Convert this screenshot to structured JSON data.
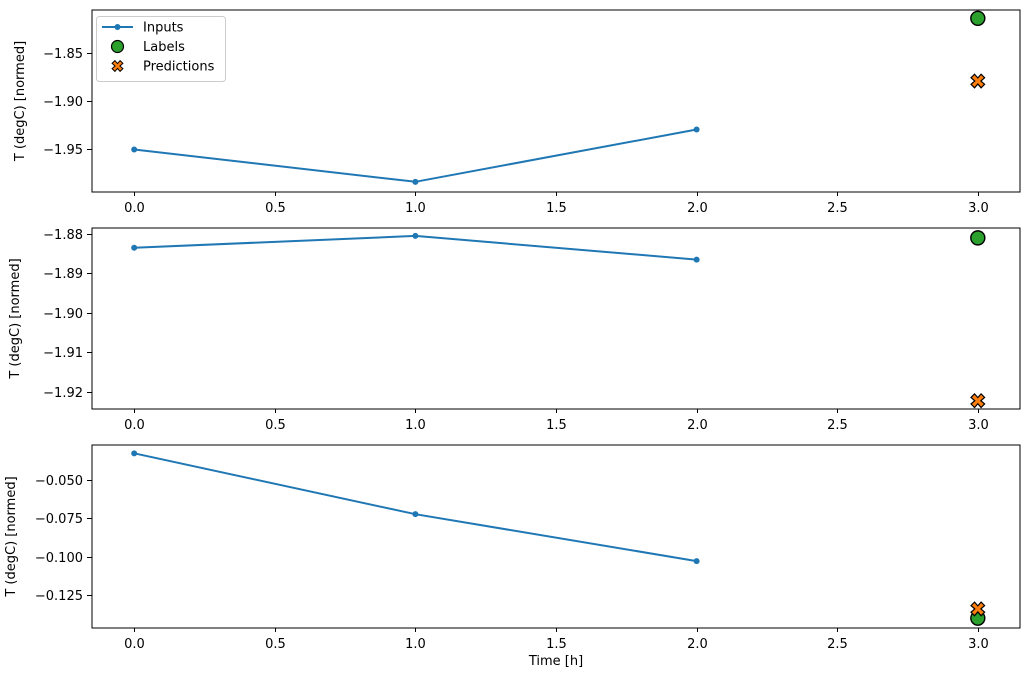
{
  "figure": {
    "xlabel": "Time [h]",
    "background": "#ffffff",
    "colors": {
      "inputs": "#1f77b4",
      "labels": "#2ca02c",
      "predictions": "#ff7f0e",
      "marker_edge": "#000000",
      "axes": "#000000",
      "text": "#000000",
      "legend_border": "#cccccc",
      "legend_bg": "#ffffff"
    },
    "legend": {
      "position": "upper-left",
      "entries": [
        {
          "label": "Inputs",
          "marker": "dot-line",
          "color": "#1f77b4"
        },
        {
          "label": "Labels",
          "marker": "circle",
          "color": "#2ca02c"
        },
        {
          "label": "Predictions",
          "marker": "x",
          "color": "#ff7f0e"
        }
      ]
    }
  },
  "chart_data": [
    {
      "type": "line",
      "ylabel": "T (degC) [normed]",
      "grid": false,
      "xlim": [
        -0.15,
        3.15
      ],
      "ylim": [
        -1.9957,
        -1.8043
      ],
      "xticks": {
        "values": [
          0,
          0.5,
          1,
          1.5,
          2,
          2.5,
          3
        ],
        "labels": [
          "0.0",
          "0.5",
          "1.0",
          "1.5",
          "2.0",
          "2.5",
          "3.0"
        ]
      },
      "yticks": {
        "values": [
          -1.85,
          -1.9,
          -1.95
        ],
        "labels": [
          "−1.85",
          "−1.90",
          "−1.95"
        ]
      },
      "series": [
        {
          "name": "Inputs",
          "marker": "dot-line",
          "x": [
            0,
            1,
            2
          ],
          "y": [
            -1.951,
            -1.985,
            -1.93
          ]
        },
        {
          "name": "Labels",
          "marker": "circle",
          "x": [
            3
          ],
          "y": [
            -1.813
          ]
        },
        {
          "name": "Predictions",
          "marker": "x",
          "x": [
            3
          ],
          "y": [
            -1.879
          ]
        }
      ]
    },
    {
      "type": "line",
      "ylabel": "T (degC) [normed]",
      "grid": false,
      "xlim": [
        -0.15,
        3.15
      ],
      "ylim": [
        -1.9243,
        -1.8785
      ],
      "xticks": {
        "values": [
          0,
          0.5,
          1,
          1.5,
          2,
          2.5,
          3
        ],
        "labels": [
          "0.0",
          "0.5",
          "1.0",
          "1.5",
          "2.0",
          "2.5",
          "3.0"
        ]
      },
      "yticks": {
        "values": [
          -1.88,
          -1.89,
          -1.9,
          -1.91,
          -1.92
        ],
        "labels": [
          "−1.88",
          "−1.89",
          "−1.90",
          "−1.91",
          "−1.92"
        ]
      },
      "series": [
        {
          "name": "Inputs",
          "marker": "dot-line",
          "x": [
            0,
            1,
            2
          ],
          "y": [
            -1.8835,
            -1.8805,
            -1.8865
          ]
        },
        {
          "name": "Labels",
          "marker": "circle",
          "x": [
            3
          ],
          "y": [
            -1.881
          ]
        },
        {
          "name": "Predictions",
          "marker": "x",
          "x": [
            3
          ],
          "y": [
            -1.9222
          ]
        }
      ]
    },
    {
      "type": "line",
      "ylabel": "T (degC) [normed]",
      "grid": false,
      "xlim": [
        -0.15,
        3.15
      ],
      "ylim": [
        -0.1464,
        -0.0276
      ],
      "xticks": {
        "values": [
          0,
          0.5,
          1,
          1.5,
          2,
          2.5,
          3
        ],
        "labels": [
          "0.0",
          "0.5",
          "1.0",
          "1.5",
          "2.0",
          "2.5",
          "3.0"
        ]
      },
      "yticks": {
        "values": [
          -0.05,
          -0.075,
          -0.1,
          -0.125
        ],
        "labels": [
          "−0.050",
          "−0.075",
          "−0.100",
          "−0.125"
        ]
      },
      "series": [
        {
          "name": "Inputs",
          "marker": "dot-line",
          "x": [
            0,
            1,
            2
          ],
          "y": [
            -0.033,
            -0.0725,
            -0.103
          ]
        },
        {
          "name": "Labels",
          "marker": "circle",
          "x": [
            3
          ],
          "y": [
            -0.14
          ]
        },
        {
          "name": "Predictions",
          "marker": "x",
          "x": [
            3
          ],
          "y": [
            -0.134
          ]
        }
      ]
    }
  ]
}
